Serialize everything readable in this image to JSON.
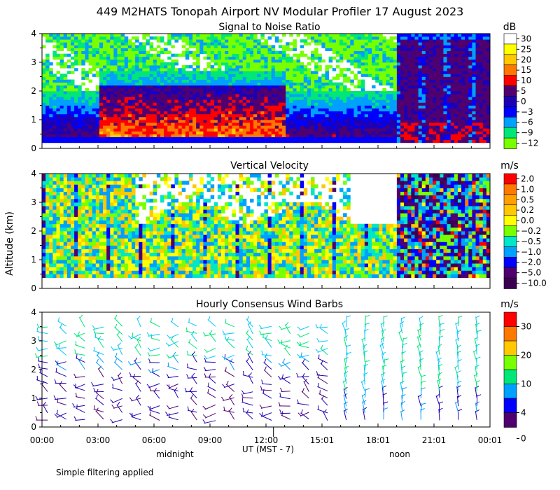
{
  "title": "449 M2HATS Tonopah Airport NV Modular Profiler 17 August 2023",
  "y_axis_label": "Altitude (km)",
  "x_axis_label": "UT  (MST - 7)",
  "x_ticks": [
    "00:00",
    "03:00",
    "06:00",
    "09:00",
    "12:00",
    "15:01",
    "18:01",
    "21:01",
    "00:01"
  ],
  "markers": {
    "midnight": "midnight",
    "noon": "noon"
  },
  "footnote": "Simple filtering applied",
  "y_ticks": [
    "0",
    "1",
    "2",
    "3",
    "4"
  ],
  "colors": {
    "white": "#ffffff",
    "yellow": "#ffff00",
    "gold": "#ffc800",
    "orange": "#ff7800",
    "red": "#ff0000",
    "purple": "#50006e",
    "darkblue": "#1e00b4",
    "blue": "#0000ff",
    "cyan": "#00c8ff",
    "sky": "#00a0ff",
    "green": "#00e678",
    "lime": "#78ff00",
    "darkpurple": "#3c0050"
  },
  "chart_data": [
    {
      "type": "heatmap",
      "title": "Signal to Noise Ratio",
      "units": "dB",
      "ylabel": "Altitude (km)",
      "ylim": [
        0,
        4
      ],
      "x_hours": [
        0,
        24
      ],
      "colorbar": {
        "labels": [
          "30",
          "25",
          "20",
          "15",
          "10",
          "5",
          "0",
          "−3",
          "−6",
          "−9",
          "−12"
        ],
        "colors": [
          "#ffffff",
          "#ffff00",
          "#ffc800",
          "#ff7800",
          "#ff0000",
          "#50006e",
          "#1e00b4",
          "#0000ff",
          "#00a0ff",
          "#00e678",
          "#78ff00"
        ]
      }
    },
    {
      "type": "heatmap",
      "title": "Vertical Velocity",
      "units": "m/s",
      "ylabel": "Altitude (km)",
      "ylim": [
        0,
        4
      ],
      "x_hours": [
        0,
        24
      ],
      "colorbar": {
        "labels": [
          "2.0",
          "1.0",
          "0.5",
          "0.2",
          "0.0",
          "−0.2",
          "−0.5",
          "−1.0",
          "−2.0",
          "−5.0",
          "−10.0"
        ],
        "colors": [
          "#ff0000",
          "#ff7800",
          "#ffa000",
          "#ffc800",
          "#ffff00",
          "#78ff00",
          "#00e6c8",
          "#00a0ff",
          "#0000ff",
          "#50006e",
          "#3c0050"
        ]
      }
    },
    {
      "type": "scatter",
      "title": "Hourly Consensus Wind Barbs",
      "units": "m/s",
      "ylabel": "Altitude (km)",
      "ylim": [
        0,
        4
      ],
      "x_hours": [
        0,
        24
      ],
      "colorbar": {
        "labels": [
          "30",
          "20",
          "10",
          "4",
          "0"
        ],
        "colors": [
          "#ff0000",
          "#ff7800",
          "#ffc800",
          "#78ff00",
          "#00e678",
          "#00a0ff",
          "#0000ff",
          "#50006e"
        ]
      }
    }
  ]
}
